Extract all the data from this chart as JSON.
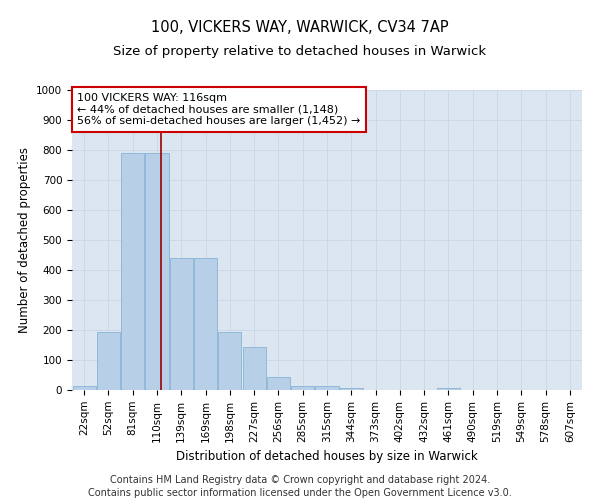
{
  "title": "100, VICKERS WAY, WARWICK, CV34 7AP",
  "subtitle": "Size of property relative to detached houses in Warwick",
  "xlabel": "Distribution of detached houses by size in Warwick",
  "ylabel": "Number of detached properties",
  "bar_color": "#b8cfe8",
  "bar_edge_color": "#7baad4",
  "grid_color": "#ccd8e8",
  "background_color": "#dce6f0",
  "annotation_box_color": "#cc0000",
  "vline_color": "#990000",
  "categories": [
    "22sqm",
    "52sqm",
    "81sqm",
    "110sqm",
    "139sqm",
    "169sqm",
    "198sqm",
    "227sqm",
    "256sqm",
    "285sqm",
    "315sqm",
    "344sqm",
    "373sqm",
    "402sqm",
    "432sqm",
    "461sqm",
    "490sqm",
    "519sqm",
    "549sqm",
    "578sqm",
    "607sqm"
  ],
  "values": [
    12,
    193,
    790,
    790,
    440,
    440,
    193,
    143,
    42,
    13,
    13,
    8,
    0,
    0,
    0,
    8,
    0,
    0,
    0,
    0,
    0
  ],
  "annotation_line1": "100 VICKERS WAY: 116sqm",
  "annotation_line2": "← 44% of detached houses are smaller (1,148)",
  "annotation_line3": "56% of semi-detached houses are larger (1,452) →",
  "vline_x": 3.15,
  "ylim": [
    0,
    1000
  ],
  "yticks": [
    0,
    100,
    200,
    300,
    400,
    500,
    600,
    700,
    800,
    900,
    1000
  ],
  "footnote1": "Contains HM Land Registry data © Crown copyright and database right 2024.",
  "footnote2": "Contains public sector information licensed under the Open Government Licence v3.0.",
  "title_fontsize": 10.5,
  "subtitle_fontsize": 9.5,
  "annotation_fontsize": 8,
  "axis_label_fontsize": 8.5,
  "tick_fontsize": 7.5,
  "footnote_fontsize": 7
}
